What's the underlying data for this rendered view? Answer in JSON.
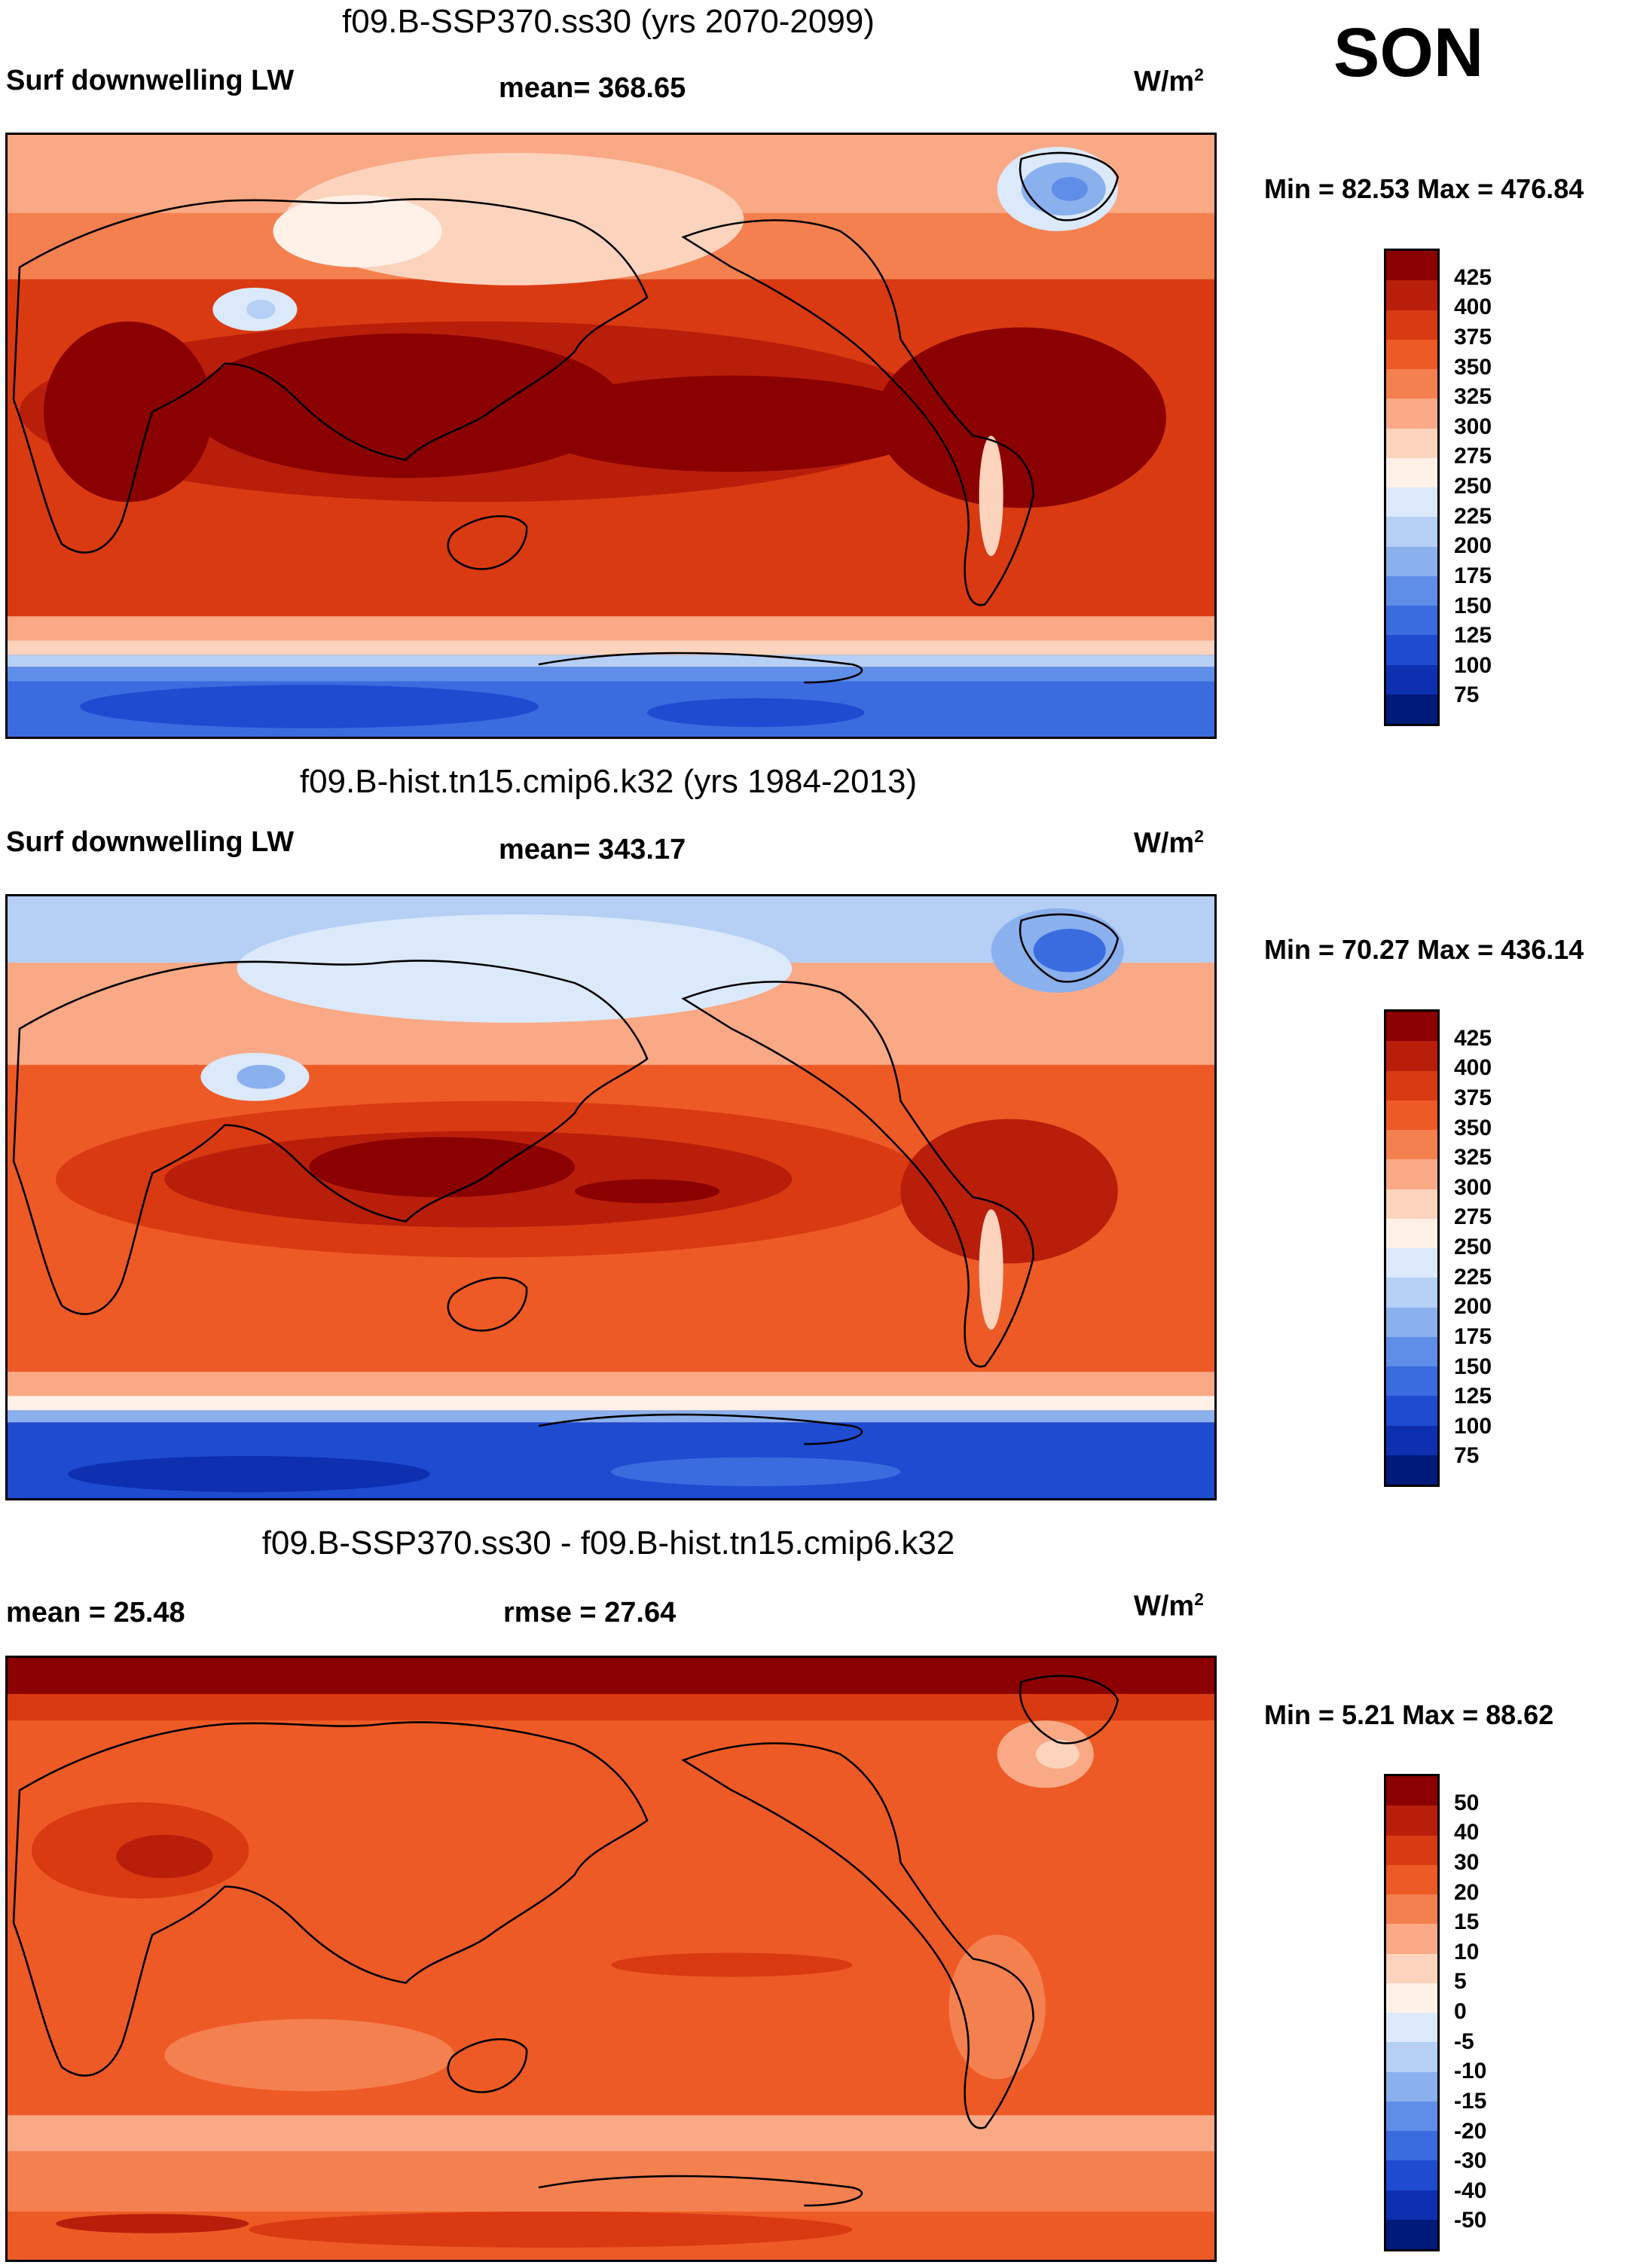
{
  "season": "SON",
  "panels": [
    {
      "title": "f09.B-SSP370.ss30 (yrs 2070-2099)",
      "left_label": "Surf downwelling LW",
      "center_label": "mean= 368.65",
      "units_base": "W/m",
      "units_sup": "2",
      "minmax": "Min =  82.53 Max = 476.84",
      "colorbar": {
        "ticks": [
          "425",
          "400",
          "375",
          "350",
          "325",
          "300",
          "275",
          "250",
          "225",
          "200",
          "175",
          "150",
          "125",
          "100",
          "75"
        ],
        "colors": [
          "#8b0000",
          "#b81e0a",
          "#d93a12",
          "#ee5a26",
          "#f5804f",
          "#f9a985",
          "#fcd3bd",
          "#fff1e8",
          "#dbe9fa",
          "#b5cff5",
          "#8bb0ee",
          "#5f8ee8",
          "#3a6ce0",
          "#1f4bd1",
          "#0d2fb0",
          "#001a7a"
        ]
      }
    },
    {
      "title": "f09.B-hist.tn15.cmip6.k32 (yrs 1984-2013)",
      "left_label": "Surf downwelling LW",
      "center_label": "mean= 343.17",
      "units_base": "W/m",
      "units_sup": "2",
      "minmax": "Min =  70.27 Max = 436.14",
      "colorbar": {
        "ticks": [
          "425",
          "400",
          "375",
          "350",
          "325",
          "300",
          "275",
          "250",
          "225",
          "200",
          "175",
          "150",
          "125",
          "100",
          "75"
        ],
        "colors": [
          "#8b0000",
          "#b81e0a",
          "#d93a12",
          "#ee5a26",
          "#f5804f",
          "#f9a985",
          "#fcd3bd",
          "#fff1e8",
          "#dbe9fa",
          "#b5cff5",
          "#8bb0ee",
          "#5f8ee8",
          "#3a6ce0",
          "#1f4bd1",
          "#0d2fb0",
          "#001a7a"
        ]
      }
    },
    {
      "title": "f09.B-SSP370.ss30 - f09.B-hist.tn15.cmip6.k32",
      "left_label": "mean =  25.48",
      "center_label": "rmse =  27.64",
      "units_base": "W/m",
      "units_sup": "2",
      "minmax": "Min =   5.21 Max =  88.62",
      "colorbar": {
        "ticks": [
          "50",
          "40",
          "30",
          "20",
          "15",
          "10",
          "5",
          "0",
          "-5",
          "-10",
          "-15",
          "-20",
          "-30",
          "-40",
          "-50"
        ],
        "colors": [
          "#8b0000",
          "#b81e0a",
          "#d93a12",
          "#ee5a26",
          "#f5804f",
          "#f9a985",
          "#fcd3bd",
          "#fff1e8",
          "#dbe9fa",
          "#b5cff5",
          "#8bb0ee",
          "#5f8ee8",
          "#3a6ce0",
          "#1f4bd1",
          "#0d2fb0",
          "#001a7a"
        ]
      }
    }
  ]
}
